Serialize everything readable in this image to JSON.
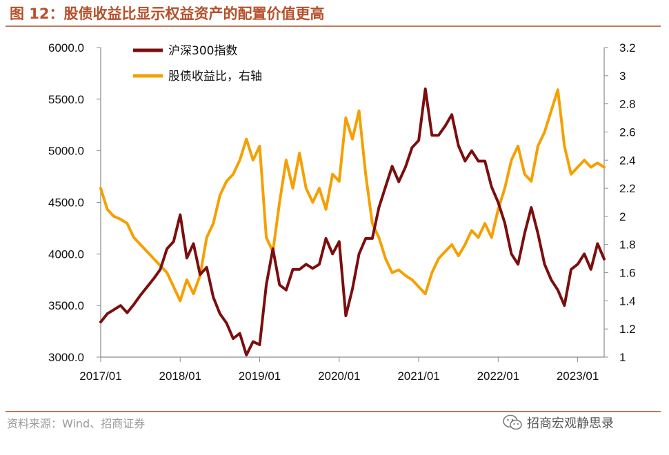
{
  "header": {
    "title": "图 12：股债收益比显示权益资产的配置价值更高"
  },
  "footer": {
    "source": "资料来源：Wind、招商证券",
    "watermark": "招商宏观静思录",
    "watermark_icon": "wechat-icon"
  },
  "colors": {
    "title": "#b5502a",
    "rule": "#c0785a",
    "hs300": "#7b0e0e",
    "ratio": "#f5a000"
  },
  "chart_data": {
    "type": "line",
    "title": "股债收益比显示权益资产的配置价值更高",
    "x_tick_labels": [
      "2017/01",
      "2018/01",
      "2019/01",
      "2020/01",
      "2021/01",
      "2022/01",
      "2023/01"
    ],
    "x_tick_positions": [
      0,
      12,
      24,
      36,
      48,
      60,
      72
    ],
    "x_range": [
      0,
      76
    ],
    "y_left": {
      "range": [
        3000,
        6000
      ],
      "ticks": [
        3000,
        3500,
        4000,
        4500,
        5000,
        5500,
        6000
      ],
      "tick_labels": [
        "3000.0",
        "3500.0",
        "4000.0",
        "4500.0",
        "5000.0",
        "5500.0",
        "6000.0"
      ]
    },
    "y_right": {
      "range": [
        1,
        3.2
      ],
      "ticks": [
        1,
        1.2,
        1.4,
        1.6,
        1.8,
        2,
        2.2,
        2.4,
        2.6,
        2.8,
        3,
        3.2
      ],
      "tick_labels": [
        "1",
        "1.2",
        "1.4",
        "1.6",
        "1.8",
        "2",
        "2.2",
        "2.4",
        "2.6",
        "2.8",
        "3",
        "3.2"
      ]
    },
    "grid": false,
    "legend_position": "top-left",
    "series": [
      {
        "name": "沪深300指数",
        "axis": "left",
        "x": [
          0,
          1,
          2,
          3,
          4,
          5,
          6,
          7,
          8,
          9,
          10,
          11,
          12,
          13,
          14,
          15,
          16,
          17,
          18,
          19,
          20,
          21,
          22,
          23,
          24,
          25,
          26,
          27,
          28,
          29,
          30,
          31,
          32,
          33,
          34,
          35,
          36,
          37,
          38,
          39,
          40,
          41,
          42,
          43,
          44,
          45,
          46,
          47,
          48,
          49,
          50,
          51,
          52,
          53,
          54,
          55,
          56,
          57,
          58,
          59,
          60,
          61,
          62,
          63,
          64,
          65,
          66,
          67,
          68,
          69,
          70,
          71,
          72,
          73,
          74,
          75,
          76
        ],
        "values": [
          3340,
          3420,
          3460,
          3500,
          3430,
          3510,
          3600,
          3680,
          3760,
          3850,
          4050,
          4120,
          4380,
          3960,
          4100,
          3800,
          3870,
          3580,
          3420,
          3330,
          3180,
          3230,
          3020,
          3150,
          3120,
          3700,
          4050,
          3700,
          3650,
          3850,
          3850,
          3900,
          3860,
          3900,
          4150,
          4000,
          4120,
          3400,
          3660,
          4000,
          4150,
          4150,
          4450,
          4650,
          4850,
          4700,
          4840,
          5030,
          5100,
          5600,
          5150,
          5150,
          5240,
          5350,
          5050,
          4900,
          5000,
          4900,
          4900,
          4650,
          4500,
          4300,
          4000,
          3900,
          4200,
          4450,
          4200,
          3900,
          3750,
          3650,
          3500,
          3850,
          3900,
          4000,
          3850,
          4100,
          3950
        ],
        "color": "#7b0e0e"
      },
      {
        "name": "股债收益比，右轴",
        "axis": "right",
        "x": [
          0,
          1,
          2,
          3,
          4,
          5,
          6,
          7,
          8,
          9,
          10,
          11,
          12,
          13,
          14,
          15,
          16,
          17,
          18,
          19,
          20,
          21,
          22,
          23,
          24,
          25,
          26,
          27,
          28,
          29,
          30,
          31,
          32,
          33,
          34,
          35,
          36,
          37,
          38,
          39,
          40,
          41,
          42,
          43,
          44,
          45,
          46,
          47,
          48,
          49,
          50,
          51,
          52,
          53,
          54,
          55,
          56,
          57,
          58,
          59,
          60,
          61,
          62,
          63,
          64,
          65,
          66,
          67,
          68,
          69,
          70,
          71,
          72,
          73,
          74,
          75,
          76
        ],
        "values": [
          2.2,
          2.05,
          2.0,
          1.98,
          1.95,
          1.85,
          1.8,
          1.75,
          1.7,
          1.65,
          1.6,
          1.5,
          1.4,
          1.55,
          1.45,
          1.58,
          1.85,
          1.95,
          2.15,
          2.25,
          2.3,
          2.4,
          2.55,
          2.4,
          2.5,
          1.85,
          1.75,
          2.1,
          2.4,
          2.2,
          2.45,
          2.2,
          2.1,
          2.2,
          2.05,
          2.3,
          2.25,
          2.7,
          2.55,
          2.75,
          2.3,
          1.95,
          1.85,
          1.7,
          1.6,
          1.62,
          1.58,
          1.55,
          1.5,
          1.45,
          1.6,
          1.7,
          1.75,
          1.8,
          1.72,
          1.8,
          1.9,
          1.85,
          1.95,
          1.85,
          2.05,
          2.2,
          2.4,
          2.5,
          2.3,
          2.25,
          2.5,
          2.6,
          2.75,
          2.9,
          2.5,
          2.3,
          2.35,
          2.4,
          2.35,
          2.38,
          2.35
        ],
        "color": "#f5a000"
      }
    ]
  }
}
